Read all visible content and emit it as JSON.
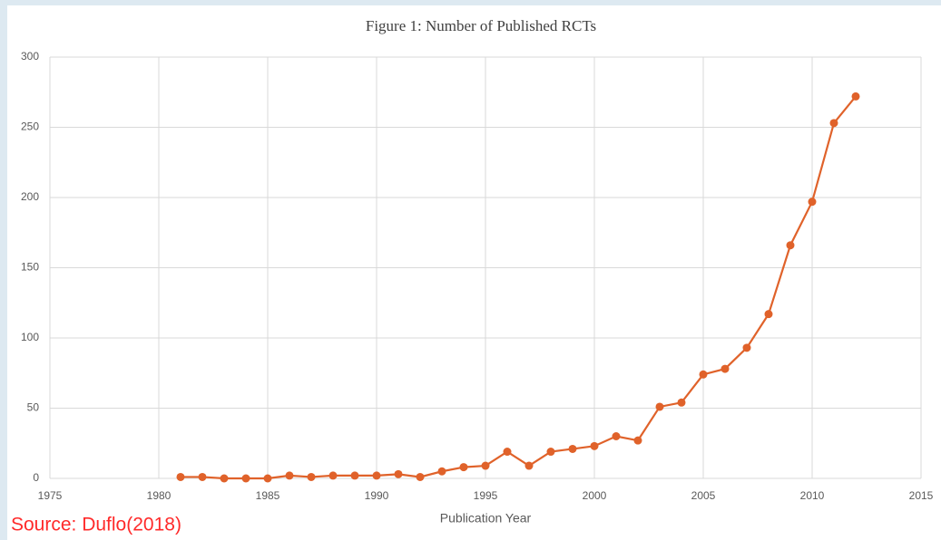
{
  "chart_data": {
    "type": "line",
    "title": "Figure 1: Number of Published RCTs",
    "x_label": "Publication Year",
    "source": "Source: Duflo(2018)",
    "x": [
      1981,
      1982,
      1983,
      1984,
      1985,
      1986,
      1987,
      1988,
      1989,
      1990,
      1991,
      1992,
      1993,
      1994,
      1995,
      1996,
      1997,
      1998,
      1999,
      2000,
      2001,
      2002,
      2003,
      2004,
      2005,
      2006,
      2007,
      2008,
      2009,
      2010,
      2011,
      2012
    ],
    "values": [
      1,
      1,
      0,
      0,
      0,
      2,
      1,
      2,
      2,
      2,
      3,
      1,
      5,
      8,
      9,
      19,
      9,
      19,
      21,
      23,
      30,
      27,
      51,
      54,
      74,
      78,
      93,
      117,
      166,
      197,
      253,
      272
    ],
    "color": "#e0622a",
    "xlim": [
      1975,
      2015
    ],
    "xticks": [
      1975,
      1980,
      1985,
      1990,
      1995,
      2000,
      2005,
      2010,
      2015
    ],
    "ylim": [
      0,
      300
    ],
    "yticks": [
      0,
      50,
      100,
      150,
      200,
      250,
      300
    ],
    "grid": true
  }
}
